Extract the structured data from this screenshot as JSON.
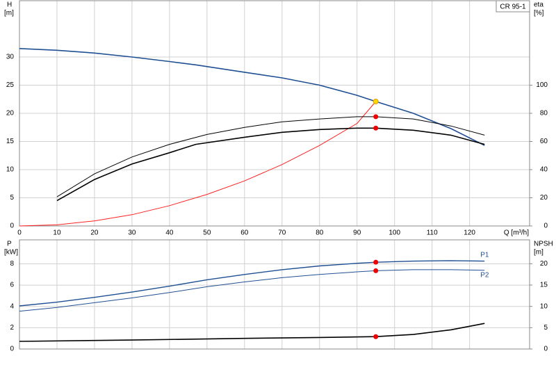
{
  "chart_data": [
    {
      "type": "line",
      "title": "CR 95-1",
      "xlabel": "Q [m³/h]",
      "ylabel": "H",
      "yunit": "[m]",
      "y2label": "eta",
      "y2unit": "[%]",
      "xlim": [
        0,
        136
      ],
      "xticks": [
        0,
        10,
        20,
        30,
        40,
        50,
        60,
        70,
        80,
        90,
        100,
        110,
        120
      ],
      "ylim": [
        0,
        40
      ],
      "yticks": [
        0,
        5,
        10,
        15,
        20,
        25,
        30
      ],
      "y2lim": [
        0,
        160
      ],
      "y2ticks": [
        0,
        20,
        40,
        60,
        80,
        100
      ],
      "grid": true,
      "series": [
        {
          "color": "#1f4f93",
          "width": 1.6,
          "x": [
            0,
            10,
            20,
            30,
            40,
            47,
            60,
            70,
            80,
            90,
            95,
            105,
            115,
            124
          ],
          "values": [
            31.5,
            31.2,
            30.7,
            30.0,
            29.2,
            28.6,
            27.3,
            26.3,
            25.0,
            23.2,
            22.1,
            20.0,
            17.3,
            14.3
          ]
        },
        {
          "color": "#ff2020",
          "width": 1,
          "x": [
            0,
            10,
            20,
            30,
            40,
            50,
            60,
            70,
            80,
            90,
            95
          ],
          "values": [
            0,
            0.2,
            0.9,
            2.0,
            3.6,
            5.6,
            8.0,
            10.9,
            14.3,
            18.2,
            22.1
          ]
        },
        {
          "color": "#000000",
          "width": 1,
          "axis": "y2",
          "x": [
            10,
            20,
            30,
            40,
            50,
            60,
            70,
            80,
            90,
            95,
            105,
            115,
            124
          ],
          "values": [
            20.7,
            37,
            49,
            58,
            65,
            70,
            74,
            76,
            77.6,
            77.6,
            76,
            71,
            64.5
          ]
        },
        {
          "color": "#000000",
          "width": 1.6,
          "axis": "y2",
          "x": [
            10,
            20,
            30,
            40,
            47,
            60,
            70,
            80,
            90,
            95,
            105,
            115,
            124
          ],
          "values": [
            18,
            33,
            44,
            52,
            58,
            63,
            66.5,
            68.5,
            69.5,
            69.5,
            68,
            64.5,
            58
          ]
        },
        {
          "color": "#ffd700",
          "marker": true,
          "x": [
            95
          ],
          "values": [
            22.1
          ]
        },
        {
          "color": "#ee0000",
          "marker": true,
          "axis": "y2",
          "x": [
            95,
            95
          ],
          "values": [
            77.6,
            69.5
          ]
        }
      ]
    },
    {
      "type": "line",
      "ylabel": "P",
      "yunit": "[kW]",
      "y2label": "NPSH",
      "y2unit": "[m]",
      "xlim": [
        0,
        136
      ],
      "xticks": [
        0,
        10,
        20,
        30,
        40,
        50,
        60,
        70,
        80,
        90,
        100,
        110,
        120
      ],
      "ylim": [
        0,
        10.25
      ],
      "yticks": [
        0,
        2,
        4,
        6,
        8
      ],
      "y2lim": [
        0,
        25.6
      ],
      "y2ticks": [
        0,
        5,
        10,
        15,
        20
      ],
      "grid": true,
      "series": [
        {
          "name": "P1",
          "color": "#1f4f93",
          "width": 1.4,
          "x": [
            0,
            10,
            20,
            30,
            40,
            50,
            60,
            70,
            80,
            90,
            95,
            105,
            115,
            124
          ],
          "values": [
            4.05,
            4.4,
            4.85,
            5.35,
            5.9,
            6.5,
            7.0,
            7.45,
            7.8,
            8.05,
            8.15,
            8.25,
            8.3,
            8.25
          ]
        },
        {
          "name": "P2",
          "color": "#1f4f93",
          "width": 1,
          "x": [
            0,
            10,
            20,
            30,
            40,
            50,
            60,
            70,
            80,
            90,
            95,
            105,
            115,
            124
          ],
          "values": [
            3.55,
            3.9,
            4.35,
            4.8,
            5.3,
            5.85,
            6.3,
            6.7,
            7.0,
            7.25,
            7.35,
            7.45,
            7.45,
            7.4
          ]
        },
        {
          "color": "#000000",
          "width": 1.6,
          "axis": "y2",
          "x": [
            0,
            30,
            60,
            80,
            95,
            105,
            115,
            124
          ],
          "values": [
            1.8,
            2.1,
            2.5,
            2.7,
            2.9,
            3.4,
            4.5,
            6.0
          ]
        },
        {
          "color": "#ee0000",
          "marker": true,
          "x": [
            95,
            95
          ],
          "values": [
            8.15,
            7.35
          ]
        },
        {
          "color": "#ee0000",
          "marker": true,
          "axis": "y2",
          "x": [
            95
          ],
          "values": [
            2.9
          ]
        }
      ]
    }
  ]
}
